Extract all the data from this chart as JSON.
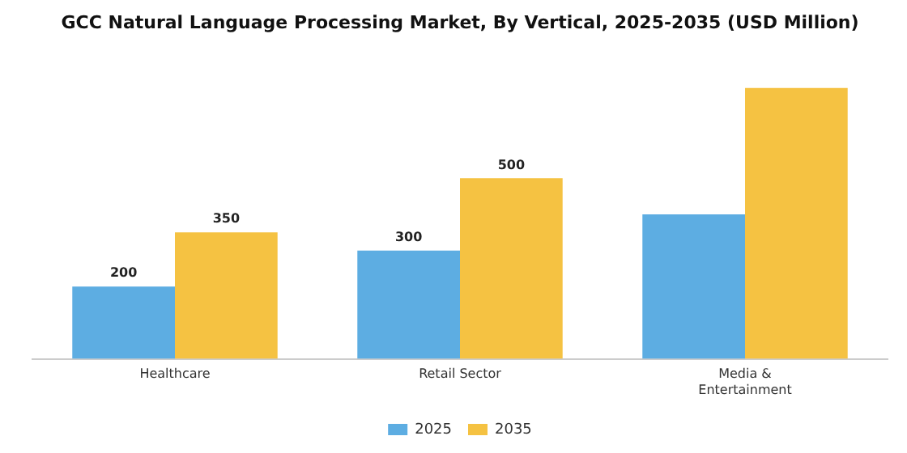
{
  "chart_data": {
    "type": "bar",
    "title": "GCC Natural Language Processing Market, By Vertical, 2025-2035 (USD Million)",
    "categories": [
      "Healthcare",
      "Retail Sector",
      "Media & Entertainment"
    ],
    "series": [
      {
        "name": "2025",
        "color": "#5dade2",
        "values": [
          200,
          300,
          400
        ],
        "value_labels": [
          "200",
          "300",
          null
        ]
      },
      {
        "name": "2035",
        "color": "#f5c242",
        "values": [
          350,
          500,
          750
        ],
        "value_labels": [
          "350",
          "500",
          null
        ]
      }
    ],
    "legend": "bottom",
    "grid": false
  }
}
